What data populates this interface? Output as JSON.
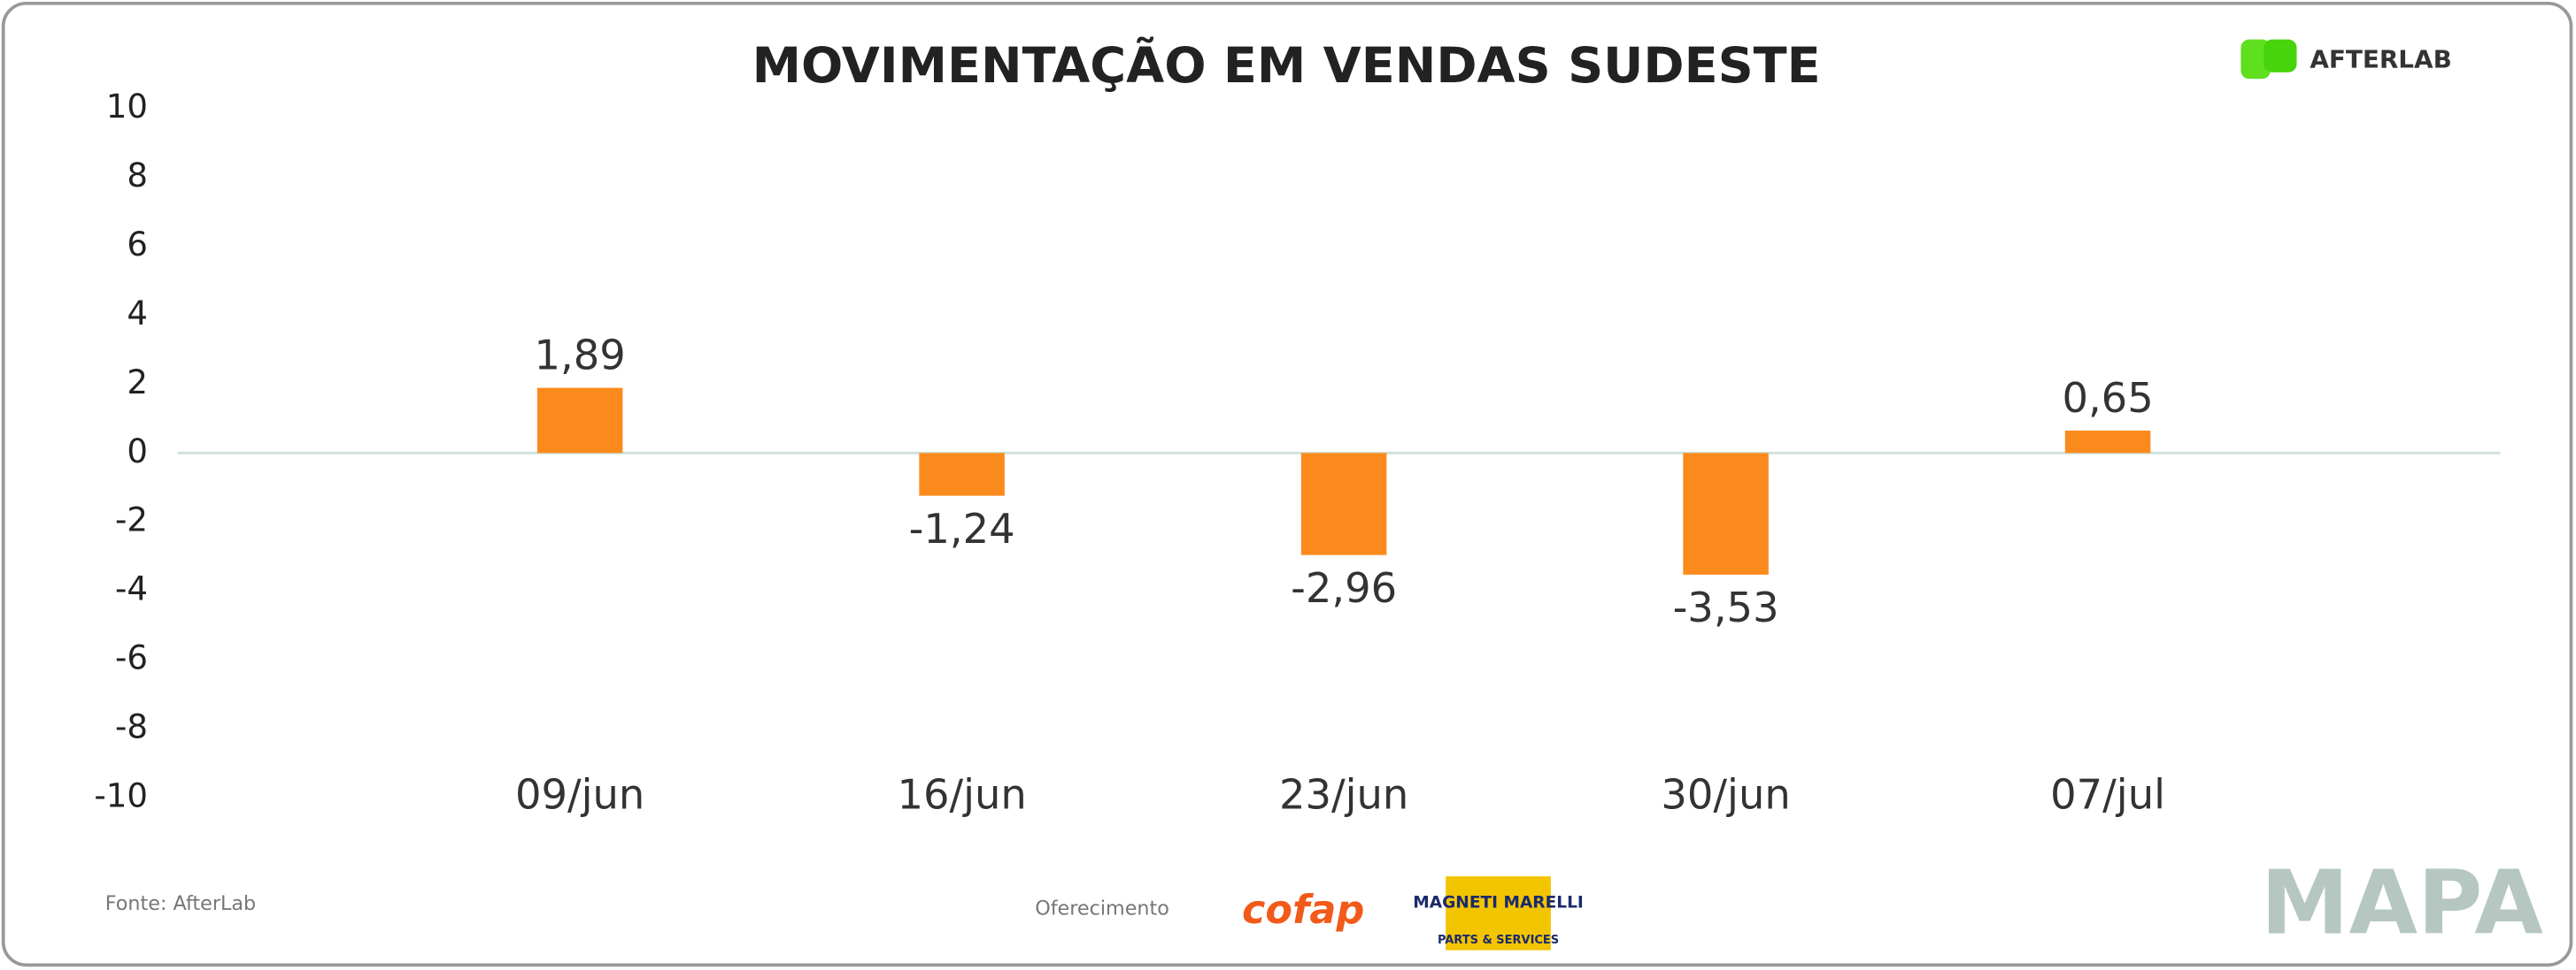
{
  "chart_data": {
    "type": "bar",
    "title": "MOVIMENTAÇÃO EM VENDAS SUDESTE",
    "categories": [
      "09/jun",
      "16/jun",
      "23/jun",
      "30/jun",
      "07/jul"
    ],
    "values": [
      1.89,
      -1.24,
      -2.96,
      -3.53,
      0.65
    ],
    "value_labels": [
      "1,89",
      "-1,24",
      "-2,96",
      "-3,53",
      "0,65"
    ],
    "color": "#fb8a1c",
    "ylim": [
      -10,
      10
    ],
    "yticks": [
      -10,
      -8,
      -6,
      -4,
      -2,
      0,
      2,
      4,
      6,
      8,
      10
    ]
  },
  "footer": {
    "source": "Fonte: AfterLab",
    "sponsor": "Oferecimento",
    "cofap": "cofap",
    "magneti": "MAGNETI MARELLI",
    "magneti_sub": "PARTS & SERVICES",
    "afterlab": "AFTERLAB",
    "mapa": "MAPA"
  }
}
